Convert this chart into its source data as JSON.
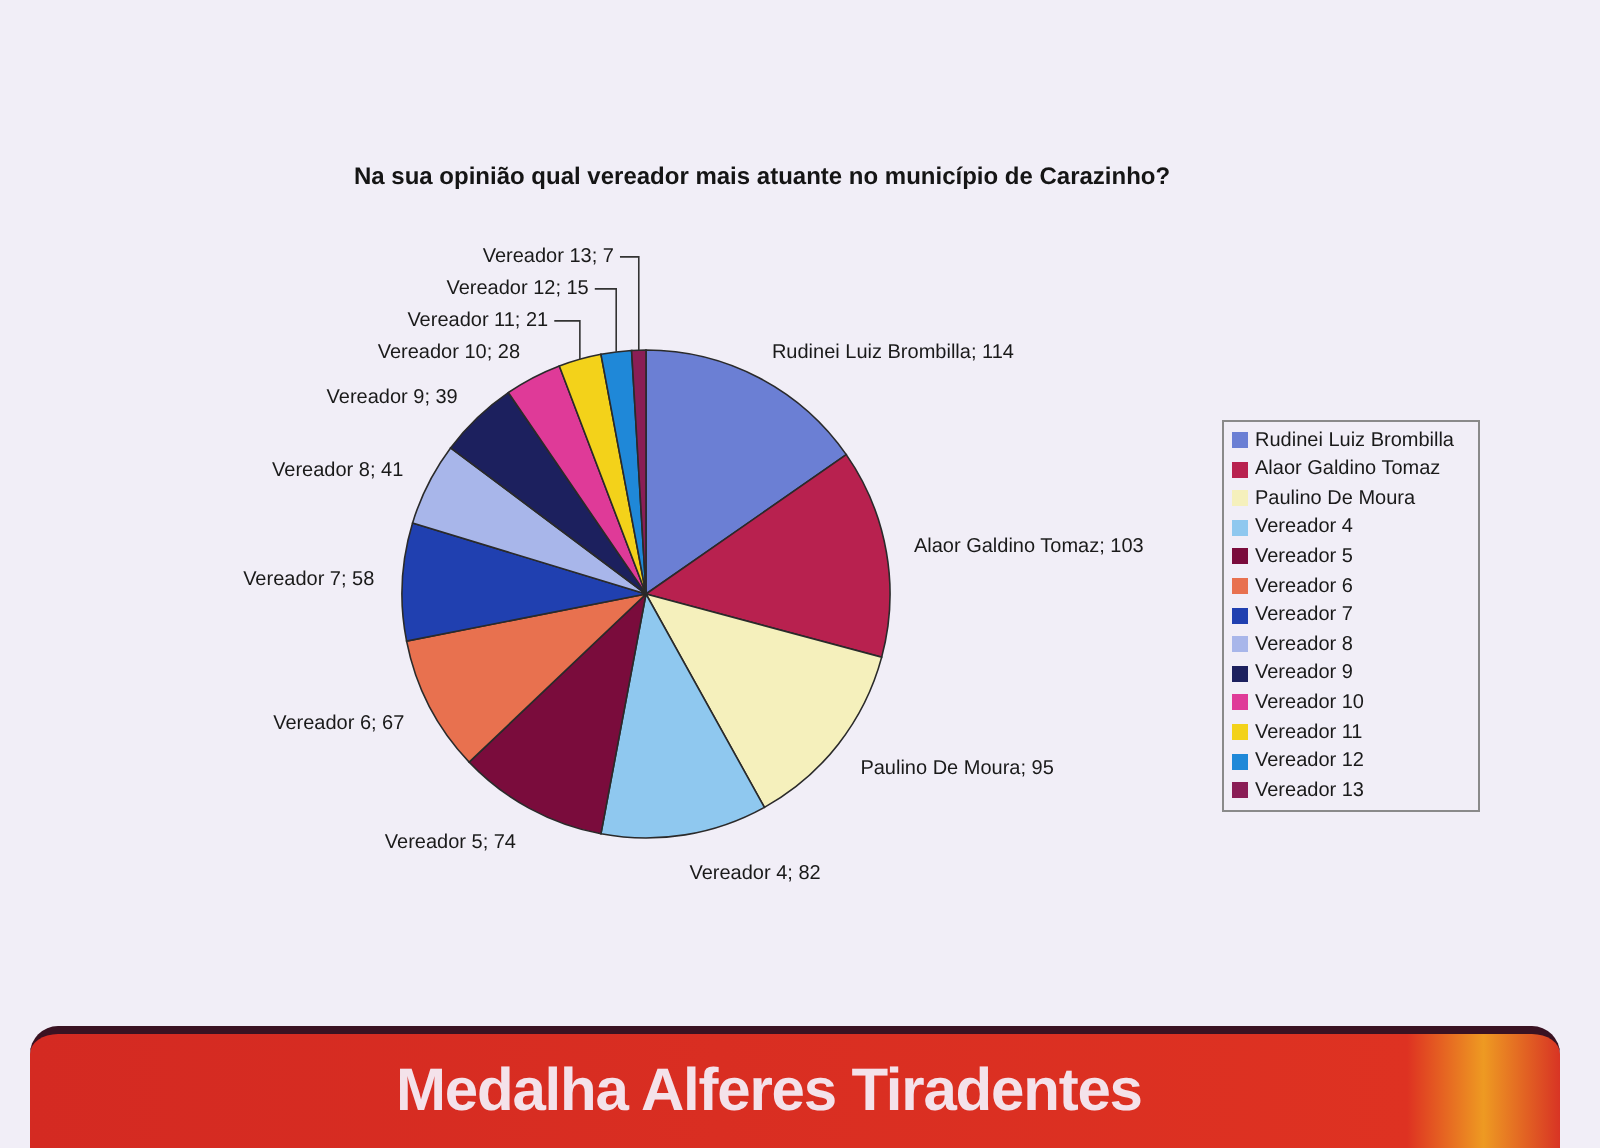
{
  "chart_data": {
    "type": "pie",
    "title": "Na sua opinião qual vereador mais atuante no município de Carazinho?",
    "categories": [
      "Rudinei Luiz Brombilla",
      "Alaor Galdino Tomaz",
      "Paulino De Moura",
      "Vereador 4",
      "Vereador 5",
      "Vereador 6",
      "Vereador 7",
      "Vereador 8",
      "Vereador 9",
      "Vereador 10",
      "Vereador 11",
      "Vereador 12",
      "Vereador 13"
    ],
    "values": [
      114,
      103,
      95,
      82,
      74,
      67,
      58,
      41,
      39,
      28,
      21,
      15,
      7
    ],
    "value_labels": [
      "Rudinei Luiz Brombilla; 114",
      "Alaor Galdino Tomaz; 103",
      "Paulino De Moura; 95",
      "Vereador 4; 82",
      "Vereador 5; 74",
      "Vereador 6; 67",
      "Vereador 7; 58",
      "Vereador 8; 41",
      "Vereador 9; 39",
      "Vereador 10; 28",
      "Vereador 11; 21",
      "Vereador 12; 15",
      "Vereador 13; 7"
    ],
    "colors": [
      "#6b7fd4",
      "#b8214f",
      "#f5f0bc",
      "#8fc8ef",
      "#7a0c3c",
      "#e8714f",
      "#2040b0",
      "#a8b6ea",
      "#1c205e",
      "#df3a98",
      "#f3d21a",
      "#1f88d8",
      "#8a1e56"
    ],
    "legend": "right",
    "annotations": [
      "Medalha Alferes Tiradentes"
    ]
  }
}
